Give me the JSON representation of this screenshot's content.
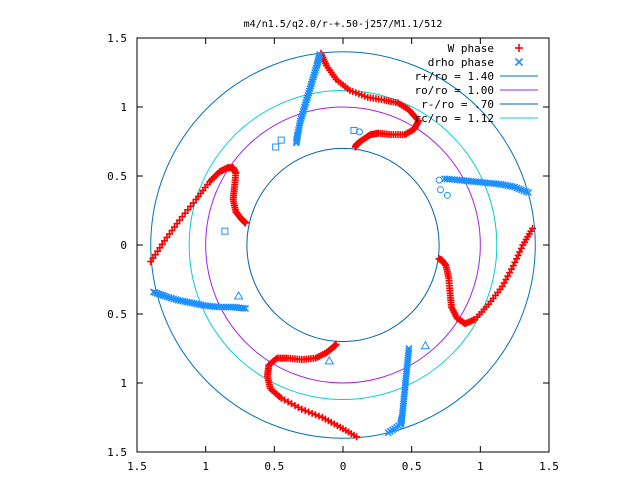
{
  "chart_data": {
    "type": "scatter",
    "title": "m4/n1.5/q2.0/r-+.50-j257/M1.1/512",
    "xlabel": "",
    "ylabel": "",
    "xlim": [
      -1.5,
      1.5
    ],
    "ylim": [
      -1.5,
      1.5
    ],
    "x_ticks": [
      -1.5,
      -1,
      -0.5,
      0,
      0.5,
      1,
      1.5
    ],
    "x_tick_labels": [
      "1.5",
      "1",
      "0.5",
      "0",
      "0.5",
      "1",
      "1.5"
    ],
    "y_ticks": [
      1.5,
      1,
      0.5,
      0,
      -0.5,
      -1,
      -1.5
    ],
    "y_tick_labels": [
      "1.5",
      "1",
      "0.5",
      "0",
      "0.5",
      "1",
      "1.5"
    ],
    "grid": false,
    "legend_position": "top-right",
    "colors": {
      "w_phase": "#ff0000",
      "drho_phase": "#1e90ff",
      "r_plus": "#0072bd",
      "r_o": "#a020f0",
      "r_minus": "#0060ad",
      "r_c": "#00d0d0"
    },
    "circles": [
      {
        "name": "r+/ro = 1.40",
        "radius": 1.4,
        "color": "#0072bd"
      },
      {
        "name": "ro/ro = 1.00",
        "radius": 1.0,
        "color": "#a020f0"
      },
      {
        "name": "r-/ro = .70",
        "radius": 0.7,
        "color": "#0060ad"
      },
      {
        "name": "rc/ro = 1.12",
        "radius": 1.12,
        "color": "#00d0d0"
      }
    ],
    "series": [
      {
        "name": "W phase",
        "marker": "+",
        "color": "#ff0000",
        "arms": [
          [
            [
              -0.16,
              1.39
            ],
            [
              -0.12,
              1.3
            ],
            [
              -0.05,
              1.2
            ],
            [
              0.05,
              1.12
            ],
            [
              0.18,
              1.07
            ],
            [
              0.3,
              1.05
            ],
            [
              0.4,
              1.03
            ],
            [
              0.48,
              0.98
            ],
            [
              0.55,
              0.9
            ],
            [
              0.52,
              0.84
            ],
            [
              0.45,
              0.8
            ],
            [
              0.35,
              0.8
            ],
            [
              0.26,
              0.81
            ],
            [
              0.2,
              0.8
            ],
            [
              0.14,
              0.76
            ],
            [
              0.1,
              0.73
            ],
            [
              0.09,
              0.71
            ]
          ],
          [
            [
              -1.4,
              -0.12
            ],
            [
              -1.3,
              0.03
            ],
            [
              -1.19,
              0.18
            ],
            [
              -1.07,
              0.33
            ],
            [
              -0.97,
              0.46
            ],
            [
              -0.9,
              0.53
            ],
            [
              -0.84,
              0.56
            ],
            [
              -0.8,
              0.56
            ],
            [
              -0.78,
              0.52
            ],
            [
              -0.79,
              0.42
            ],
            [
              -0.8,
              0.33
            ],
            [
              -0.78,
              0.24
            ],
            [
              -0.74,
              0.19
            ],
            [
              -0.72,
              0.17
            ],
            [
              -0.71,
              0.16
            ]
          ],
          [
            [
              1.38,
              0.12
            ],
            [
              1.31,
              0.0
            ],
            [
              1.24,
              -0.15
            ],
            [
              1.16,
              -0.3
            ],
            [
              1.06,
              -0.43
            ],
            [
              0.96,
              -0.54
            ],
            [
              0.89,
              -0.57
            ],
            [
              0.83,
              -0.53
            ],
            [
              0.79,
              -0.45
            ],
            [
              0.78,
              -0.35
            ],
            [
              0.77,
              -0.24
            ],
            [
              0.75,
              -0.15
            ],
            [
              0.72,
              -0.11
            ],
            [
              0.7,
              -0.1
            ]
          ],
          [
            [
              0.1,
              -1.39
            ],
            [
              -0.02,
              -1.32
            ],
            [
              -0.15,
              -1.25
            ],
            [
              -0.3,
              -1.19
            ],
            [
              -0.45,
              -1.11
            ],
            [
              -0.53,
              -1.04
            ],
            [
              -0.55,
              -0.95
            ],
            [
              -0.54,
              -0.87
            ],
            [
              -0.48,
              -0.82
            ],
            [
              -0.4,
              -0.82
            ],
            [
              -0.3,
              -0.83
            ],
            [
              -0.2,
              -0.82
            ],
            [
              -0.12,
              -0.78
            ],
            [
              -0.07,
              -0.74
            ],
            [
              -0.05,
              -0.72
            ]
          ]
        ]
      },
      {
        "name": "drho phase",
        "marker": "x",
        "color": "#1e90ff",
        "arms": [
          [
            [
              -0.34,
              0.74
            ],
            [
              -0.33,
              0.8
            ],
            [
              -0.31,
              0.9
            ],
            [
              -0.28,
              1.0
            ],
            [
              -0.25,
              1.1
            ],
            [
              -0.22,
              1.2
            ],
            [
              -0.19,
              1.3
            ],
            [
              -0.17,
              1.38
            ]
          ],
          [
            [
              0.74,
              0.48
            ],
            [
              0.85,
              0.47
            ],
            [
              0.95,
              0.46
            ],
            [
              1.05,
              0.45
            ],
            [
              1.15,
              0.44
            ],
            [
              1.25,
              0.42
            ],
            [
              1.35,
              0.38
            ]
          ],
          [
            [
              -1.38,
              -0.34
            ],
            [
              -1.3,
              -0.37
            ],
            [
              -1.2,
              -0.4
            ],
            [
              -1.1,
              -0.42
            ],
            [
              -1.0,
              -0.44
            ],
            [
              -0.9,
              -0.45
            ],
            [
              -0.8,
              -0.45
            ],
            [
              -0.71,
              -0.46
            ]
          ],
          [
            [
              0.48,
              -0.75
            ],
            [
              0.47,
              -0.85
            ],
            [
              0.46,
              -0.95
            ],
            [
              0.45,
              -1.05
            ],
            [
              0.44,
              -1.15
            ],
            [
              0.43,
              -1.25
            ],
            [
              0.42,
              -1.3
            ],
            [
              0.33,
              -1.36
            ]
          ]
        ]
      }
    ],
    "extra_markers": [
      {
        "shape": "square",
        "points": [
          [
            -0.49,
            0.71
          ],
          [
            -0.45,
            0.76
          ],
          [
            -0.86,
            0.1
          ],
          [
            0.08,
            0.83
          ]
        ]
      },
      {
        "shape": "circle",
        "points": [
          [
            0.12,
            0.82
          ],
          [
            0.7,
            0.47
          ],
          [
            0.71,
            0.4
          ],
          [
            0.76,
            0.36
          ]
        ]
      },
      {
        "shape": "triangle",
        "points": [
          [
            -0.76,
            -0.37
          ],
          [
            -0.1,
            -0.84
          ],
          [
            0.6,
            -0.73
          ]
        ]
      }
    ]
  }
}
